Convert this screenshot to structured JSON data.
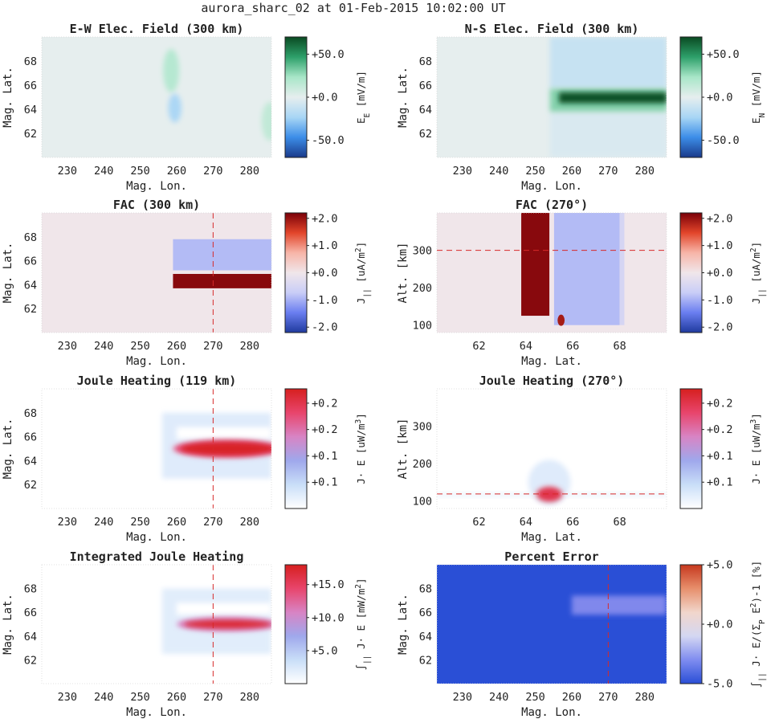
{
  "figure": {
    "title": "aurora_sharc_02 at 01-Feb-2015 10:02:00 UT"
  },
  "colors": {
    "field_cmap": [
      "#1a3a8a",
      "#3c8de8",
      "#a8d6f5",
      "#e6eeee",
      "#a8e6c8",
      "#2da06a",
      "#0a4a22"
    ],
    "fac_cmap": [
      "#1f3a9e",
      "#6a7ef0",
      "#c9cdf7",
      "#f0e6ea",
      "#f7b5a8",
      "#e2452a",
      "#7a0008"
    ],
    "joule_cmap": [
      "#ffffff",
      "#c9def8",
      "#9fa8ec",
      "#d884c4",
      "#e8456c",
      "#d61f1f"
    ],
    "error_cmap": [
      "#2a4fd6",
      "#7f8cf0",
      "#d4d7f2",
      "#f1d6cb",
      "#e78f6c",
      "#c6381e"
    ],
    "error_field": "#2a4fd6",
    "error_band": "#8088ec",
    "guide_line": "#d62a2a"
  },
  "chart_data": [
    {
      "id": "ew_field",
      "type": "heatmap",
      "title": "E-W Elec. Field (300 km)",
      "xlabel": "Mag. Lon.",
      "ylabel": "Mag. Lat.",
      "xlim": [
        223,
        286
      ],
      "ylim": [
        60,
        70
      ],
      "xticks": [
        230,
        240,
        250,
        260,
        270,
        280
      ],
      "yticks": [
        62,
        64,
        66,
        68
      ],
      "colorbar": {
        "label": "E_E [mV/m]",
        "range": [
          -70,
          70
        ],
        "ticks": [
          50,
          0,
          -50
        ],
        "tick_labels": [
          "+50.0",
          "+0.0",
          "-50.0"
        ],
        "cmap": "field_cmap"
      },
      "background_value": 0,
      "features": [
        {
          "shape": "ellipse",
          "lon": 258.5,
          "lat": 67.2,
          "dlon": 2.2,
          "dlat": 1.8,
          "value": 18
        },
        {
          "shape": "ellipse",
          "lon": 259.5,
          "lat": 64.1,
          "dlon": 1.8,
          "dlat": 1.2,
          "value": -22
        },
        {
          "shape": "ellipse",
          "lon": 285.5,
          "lat": 63.0,
          "dlon": 2.2,
          "dlat": 1.6,
          "value": 14
        }
      ],
      "guide_lines": []
    },
    {
      "id": "ns_field",
      "type": "heatmap",
      "title": "N-S Elec. Field (300 km)",
      "xlabel": "Mag. Lon.",
      "ylabel": "Mag. Lat.",
      "xlim": [
        223,
        286
      ],
      "ylim": [
        60,
        70
      ],
      "xticks": [
        230,
        240,
        250,
        260,
        270,
        280
      ],
      "yticks": [
        62,
        64,
        66,
        68
      ],
      "colorbar": {
        "label": "E_N [mV/m]",
        "range": [
          -70,
          70
        ],
        "ticks": [
          50,
          0,
          -50
        ],
        "tick_labels": [
          "+50.0",
          "+0.0",
          "-50.0"
        ],
        "cmap": "field_cmap"
      },
      "background_value": 0,
      "features": [
        {
          "shape": "rect",
          "lon0": 254.0,
          "lon1": 286.0,
          "lat0": 65.7,
          "lat1": 70.0,
          "value": -12
        },
        {
          "shape": "rect",
          "lon0": 254.0,
          "lon1": 286.0,
          "lat0": 60.0,
          "lat1": 63.8,
          "value": -5
        },
        {
          "shape": "rect",
          "lon0": 254.0,
          "lon1": 286.0,
          "lat0": 63.8,
          "lat1": 65.7,
          "value": 30
        },
        {
          "shape": "rect",
          "lon0": 256.5,
          "lon1": 286.0,
          "lat0": 64.5,
          "lat1": 65.4,
          "value": 68
        }
      ],
      "guide_lines": []
    },
    {
      "id": "fac_300",
      "type": "heatmap",
      "title": "FAC (300 km)",
      "xlabel": "Mag. Lon.",
      "ylabel": "Mag. Lat.",
      "xlim": [
        223,
        286
      ],
      "ylim": [
        60,
        70
      ],
      "xticks": [
        230,
        240,
        250,
        260,
        270,
        280
      ],
      "yticks": [
        62,
        64,
        66,
        68
      ],
      "colorbar": {
        "label": "J_|| [uA/m^2]",
        "range": [
          -2.2,
          2.2
        ],
        "ticks": [
          2,
          1,
          0,
          -1,
          -2
        ],
        "tick_labels": [
          "+2.0",
          "+1.0",
          "+0.0",
          "-1.0",
          "-2.0"
        ],
        "cmap": "fac_cmap"
      },
      "background_value": 0,
      "features": [
        {
          "shape": "rect",
          "lon0": 259.0,
          "lon1": 286.0,
          "lat0": 65.2,
          "lat1": 67.8,
          "value": -0.9
        },
        {
          "shape": "rect",
          "lon0": 259.0,
          "lon1": 286.0,
          "lat0": 63.7,
          "lat1": 64.9,
          "value": 2.1
        }
      ],
      "guide_lines": [
        {
          "axis": "x",
          "value": 270
        }
      ]
    },
    {
      "id": "fac_270",
      "type": "heatmap",
      "title": "FAC (270°)",
      "xlabel": "Mag. Lat.",
      "ylabel": "Alt. [km]",
      "xlim": [
        60.2,
        70
      ],
      "ylim": [
        80,
        400
      ],
      "xticks": [
        62,
        64,
        66,
        68
      ],
      "yticks": [
        100,
        200,
        300
      ],
      "colorbar": {
        "label": "J_|| [uA/m^2]",
        "range": [
          -2.2,
          2.2
        ],
        "ticks": [
          2,
          1,
          0,
          -1,
          -2
        ],
        "tick_labels": [
          "+2.0",
          "+1.0",
          "+0.0",
          "-1.0",
          "-2.0"
        ],
        "cmap": "fac_cmap"
      },
      "background_value": 0,
      "features": [
        {
          "shape": "rect",
          "lon0": 65.2,
          "lon1": 68.0,
          "lat0": 100,
          "lat1": 400,
          "value": -0.9
        },
        {
          "shape": "rect",
          "lon0": 68.0,
          "lon1": 68.2,
          "lat0": 100,
          "lat1": 400,
          "value": -0.5
        },
        {
          "shape": "rect",
          "lon0": 63.8,
          "lon1": 65.0,
          "lat0": 125,
          "lat1": 400,
          "value": 2.1
        },
        {
          "shape": "ellipse",
          "lon": 65.5,
          "lat": 113,
          "dlon": 0.15,
          "dlat": 15,
          "value": 1.9
        }
      ],
      "guide_lines": [
        {
          "axis": "y",
          "value": 300
        }
      ]
    },
    {
      "id": "joule_119",
      "type": "heatmap",
      "title": "Joule Heating (119 km)",
      "xlabel": "Mag. Lon.",
      "ylabel": "Mag. Lat.",
      "xlim": [
        223,
        286
      ],
      "ylim": [
        60,
        70
      ],
      "xticks": [
        230,
        240,
        250,
        260,
        270,
        280
      ],
      "yticks": [
        62,
        64,
        66,
        68
      ],
      "colorbar": {
        "label": "J· E [uW/m^3]",
        "range": [
          0,
          0.25
        ],
        "ticks": [
          0.22,
          0.165,
          0.11,
          0.055
        ],
        "tick_labels": [
          "+0.2",
          "+0.2",
          "+0.1",
          "+0.1"
        ],
        "cmap": "joule_cmap"
      },
      "background_value": 0,
      "features": [
        {
          "shape": "rect",
          "lon0": 256.0,
          "lon1": 286.0,
          "lat0": 62.5,
          "lat1": 68.0,
          "value": 0.03
        },
        {
          "shape": "rect",
          "lon0": 260.0,
          "lon1": 286.0,
          "lat0": 65.8,
          "lat1": 66.8,
          "value": 0.0
        },
        {
          "shape": "ellipse",
          "lon": 274.0,
          "lat": 65.0,
          "dlon": 15.0,
          "dlat": 0.75,
          "value": 0.19
        },
        {
          "shape": "ellipse",
          "lon": 274.0,
          "lat": 65.0,
          "dlon": 13.0,
          "dlat": 0.55,
          "value": 0.245
        }
      ],
      "guide_lines": [
        {
          "axis": "x",
          "value": 270
        }
      ]
    },
    {
      "id": "joule_270",
      "type": "heatmap",
      "title": "Joule Heating (270°)",
      "xlabel": "Mag. Lat.",
      "ylabel": "Alt. [km]",
      "xlim": [
        60.2,
        70
      ],
      "ylim": [
        80,
        400
      ],
      "xticks": [
        62,
        64,
        66,
        68
      ],
      "yticks": [
        100,
        200,
        300
      ],
      "colorbar": {
        "label": "J· E [uW/m^3]",
        "range": [
          0,
          0.25
        ],
        "ticks": [
          0.22,
          0.165,
          0.11,
          0.055
        ],
        "tick_labels": [
          "+0.2",
          "+0.2",
          "+0.1",
          "+0.1"
        ],
        "cmap": "joule_cmap"
      },
      "background_value": 0,
      "features": [
        {
          "shape": "ellipse",
          "lon": 65.0,
          "lat": 150,
          "dlon": 0.9,
          "dlat": 60,
          "value": 0.03
        },
        {
          "shape": "rect",
          "lon0": 60.2,
          "lon1": 70.0,
          "lat0": 112,
          "lat1": 122,
          "value": 0.02
        },
        {
          "shape": "ellipse",
          "lon": 65.0,
          "lat": 118,
          "dlon": 0.55,
          "dlat": 20,
          "value": 0.22
        }
      ],
      "guide_lines": [
        {
          "axis": "y",
          "value": 119
        }
      ]
    },
    {
      "id": "int_joule",
      "type": "heatmap",
      "title": "Integrated Joule Heating",
      "xlabel": "Mag. Lon.",
      "ylabel": "Mag. Lat.",
      "xlim": [
        223,
        286
      ],
      "ylim": [
        60,
        70
      ],
      "xticks": [
        230,
        240,
        250,
        260,
        270,
        280
      ],
      "yticks": [
        62,
        64,
        66,
        68
      ],
      "colorbar": {
        "label": "∫_|| J· E [mW/m^2]",
        "range": [
          0,
          18
        ],
        "ticks": [
          15,
          10,
          5
        ],
        "tick_labels": [
          "+15.0",
          "+10.0",
          "+5.0"
        ],
        "cmap": "joule_cmap"
      },
      "background_value": 0,
      "features": [
        {
          "shape": "rect",
          "lon0": 256.0,
          "lon1": 286.0,
          "lat0": 62.5,
          "lat1": 68.0,
          "value": 2.0
        },
        {
          "shape": "rect",
          "lon0": 260.0,
          "lon1": 286.0,
          "lat0": 65.8,
          "lat1": 66.8,
          "value": 0.0
        },
        {
          "shape": "ellipse",
          "lon": 274.0,
          "lat": 65.0,
          "dlon": 14.0,
          "dlat": 0.6,
          "value": 11.0
        },
        {
          "shape": "ellipse",
          "lon": 274.0,
          "lat": 65.0,
          "dlon": 12.0,
          "dlat": 0.35,
          "value": 17.0
        }
      ],
      "guide_lines": [
        {
          "axis": "x",
          "value": 270
        }
      ]
    },
    {
      "id": "pct_error",
      "type": "heatmap",
      "title": "Percent Error",
      "xlabel": "Mag. Lon.",
      "ylabel": "Mag. Lat.",
      "xlim": [
        223,
        286
      ],
      "ylim": [
        60,
        70
      ],
      "xticks": [
        230,
        240,
        250,
        260,
        270,
        280
      ],
      "yticks": [
        62,
        64,
        66,
        68
      ],
      "colorbar": {
        "label": "∫_|| J· E/(Σ_P E^2)-1 [%]",
        "range": [
          -5,
          5
        ],
        "ticks": [
          5,
          0,
          -5
        ],
        "tick_labels": [
          "+5.0",
          "+0.0",
          "-5.0"
        ],
        "cmap": "error_cmap"
      },
      "background_value": -5,
      "features": [
        {
          "shape": "rect",
          "lon0": 260.0,
          "lon1": 286.0,
          "lat0": 65.8,
          "lat1": 67.4,
          "value": -3.6
        }
      ],
      "guide_lines": [
        {
          "axis": "x",
          "value": 270
        }
      ]
    }
  ]
}
